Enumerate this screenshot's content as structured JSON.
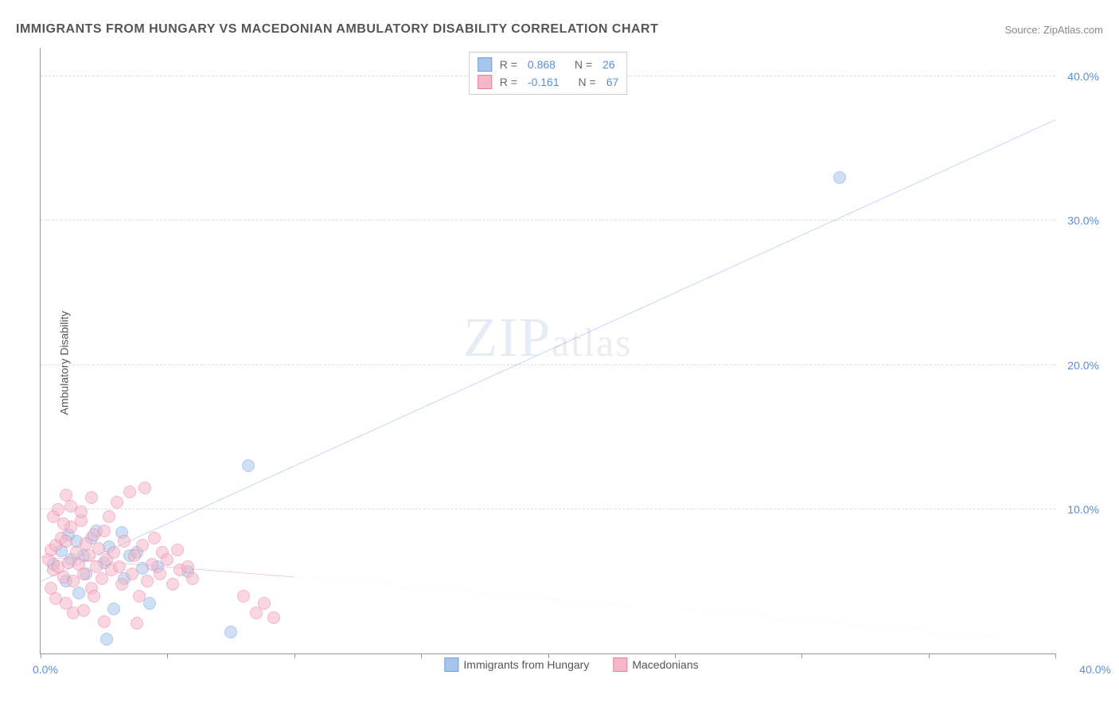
{
  "title": "IMMIGRANTS FROM HUNGARY VS MACEDONIAN AMBULATORY DISABILITY CORRELATION CHART",
  "source_label": "Source: ",
  "source_name": "ZipAtlas.com",
  "watermark_main": "ZIP",
  "watermark_sub": "atlas",
  "ylabel": "Ambulatory Disability",
  "chart": {
    "type": "scatter",
    "xlim": [
      0,
      40
    ],
    "ylim": [
      0,
      42
    ],
    "x_ticks": [
      0,
      5,
      10,
      15,
      20,
      25,
      30,
      35,
      40
    ],
    "y_gridlines": [
      10,
      20,
      30,
      40
    ],
    "y_tick_labels": [
      "10.0%",
      "20.0%",
      "30.0%",
      "40.0%"
    ],
    "x_label_start": "0.0%",
    "x_label_end": "40.0%",
    "background_color": "#ffffff",
    "grid_color": "#dddddd",
    "marker_radius": 7,
    "marker_opacity": 0.55
  },
  "series": [
    {
      "id": "hungary",
      "label": "Immigrants from Hungary",
      "color_fill": "#a8c6ec",
      "color_stroke": "#6fa0dc",
      "r": "0.868",
      "n": "26",
      "trend": {
        "x1": 0,
        "y1": 5.0,
        "x2": 40,
        "y2": 37.0,
        "color": "#2e6fd9",
        "width": 2,
        "dash": "none"
      },
      "points": [
        {
          "x": 0.5,
          "y": 6.2
        },
        {
          "x": 0.8,
          "y": 7.1
        },
        {
          "x": 1.0,
          "y": 5.0
        },
        {
          "x": 1.2,
          "y": 6.5
        },
        {
          "x": 1.4,
          "y": 7.8
        },
        {
          "x": 1.5,
          "y": 4.2
        },
        {
          "x": 1.7,
          "y": 6.8
        },
        {
          "x": 1.8,
          "y": 5.5
        },
        {
          "x": 2.0,
          "y": 8.0
        },
        {
          "x": 2.2,
          "y": 8.5
        },
        {
          "x": 2.5,
          "y": 6.3
        },
        {
          "x": 2.7,
          "y": 7.4
        },
        {
          "x": 2.9,
          "y": 3.1
        },
        {
          "x": 3.2,
          "y": 8.4
        },
        {
          "x": 3.3,
          "y": 5.2
        },
        {
          "x": 3.5,
          "y": 6.8
        },
        {
          "x": 3.8,
          "y": 7.0
        },
        {
          "x": 4.0,
          "y": 5.9
        },
        {
          "x": 4.3,
          "y": 3.5
        },
        {
          "x": 4.6,
          "y": 6.0
        },
        {
          "x": 5.8,
          "y": 5.7
        },
        {
          "x": 2.6,
          "y": 1.0
        },
        {
          "x": 7.5,
          "y": 1.5
        },
        {
          "x": 8.2,
          "y": 13.0
        },
        {
          "x": 31.5,
          "y": 33.0
        },
        {
          "x": 1.1,
          "y": 8.2
        }
      ]
    },
    {
      "id": "macedonians",
      "label": "Macedonians",
      "color_fill": "#f5b8c8",
      "color_stroke": "#ec7ba0",
      "r": "-0.161",
      "n": "67",
      "trend_solid": {
        "x1": 0,
        "y1": 6.7,
        "x2": 10,
        "y2": 5.3,
        "color": "#e5527d",
        "width": 2
      },
      "trend_dash": {
        "x1": 10,
        "y1": 5.3,
        "x2": 40,
        "y2": 0.8,
        "color": "#f5b8c8",
        "width": 1
      },
      "points": [
        {
          "x": 0.3,
          "y": 6.5
        },
        {
          "x": 0.4,
          "y": 7.2
        },
        {
          "x": 0.5,
          "y": 5.8
        },
        {
          "x": 0.6,
          "y": 7.5
        },
        {
          "x": 0.7,
          "y": 6.0
        },
        {
          "x": 0.8,
          "y": 8.0
        },
        {
          "x": 0.9,
          "y": 5.3
        },
        {
          "x": 1.0,
          "y": 7.8
        },
        {
          "x": 1.1,
          "y": 6.3
        },
        {
          "x": 1.2,
          "y": 8.8
        },
        {
          "x": 1.3,
          "y": 5.0
        },
        {
          "x": 1.4,
          "y": 7.0
        },
        {
          "x": 1.5,
          "y": 6.2
        },
        {
          "x": 1.6,
          "y": 9.2
        },
        {
          "x": 1.7,
          "y": 5.5
        },
        {
          "x": 1.8,
          "y": 7.6
        },
        {
          "x": 1.9,
          "y": 6.8
        },
        {
          "x": 2.0,
          "y": 4.5
        },
        {
          "x": 2.1,
          "y": 8.2
        },
        {
          "x": 2.2,
          "y": 6.0
        },
        {
          "x": 2.3,
          "y": 7.3
        },
        {
          "x": 2.4,
          "y": 5.2
        },
        {
          "x": 2.5,
          "y": 8.5
        },
        {
          "x": 2.6,
          "y": 6.5
        },
        {
          "x": 2.7,
          "y": 9.5
        },
        {
          "x": 2.8,
          "y": 5.8
        },
        {
          "x": 2.9,
          "y": 7.0
        },
        {
          "x": 3.0,
          "y": 10.5
        },
        {
          "x": 3.1,
          "y": 6.0
        },
        {
          "x": 3.2,
          "y": 4.8
        },
        {
          "x": 3.3,
          "y": 7.8
        },
        {
          "x": 3.5,
          "y": 11.2
        },
        {
          "x": 3.6,
          "y": 5.5
        },
        {
          "x": 3.7,
          "y": 6.8
        },
        {
          "x": 3.9,
          "y": 4.0
        },
        {
          "x": 4.0,
          "y": 7.5
        },
        {
          "x": 4.1,
          "y": 11.5
        },
        {
          "x": 4.2,
          "y": 5.0
        },
        {
          "x": 4.4,
          "y": 6.2
        },
        {
          "x": 4.5,
          "y": 8.0
        },
        {
          "x": 4.7,
          "y": 5.5
        },
        {
          "x": 4.8,
          "y": 7.0
        },
        {
          "x": 5.0,
          "y": 6.5
        },
        {
          "x": 5.2,
          "y": 4.8
        },
        {
          "x": 5.4,
          "y": 7.2
        },
        {
          "x": 5.5,
          "y": 5.8
        },
        {
          "x": 5.8,
          "y": 6.0
        },
        {
          "x": 6.0,
          "y": 5.2
        },
        {
          "x": 0.4,
          "y": 4.5
        },
        {
          "x": 0.6,
          "y": 3.8
        },
        {
          "x": 1.0,
          "y": 3.5
        },
        {
          "x": 1.3,
          "y": 2.8
        },
        {
          "x": 1.7,
          "y": 3.0
        },
        {
          "x": 2.1,
          "y": 4.0
        },
        {
          "x": 2.5,
          "y": 2.2
        },
        {
          "x": 3.8,
          "y": 2.1
        },
        {
          "x": 8.0,
          "y": 4.0
        },
        {
          "x": 8.5,
          "y": 2.8
        },
        {
          "x": 8.8,
          "y": 3.5
        },
        {
          "x": 9.2,
          "y": 2.5
        },
        {
          "x": 0.5,
          "y": 9.5
        },
        {
          "x": 0.7,
          "y": 10.0
        },
        {
          "x": 0.9,
          "y": 9.0
        },
        {
          "x": 1.2,
          "y": 10.2
        },
        {
          "x": 1.6,
          "y": 9.8
        },
        {
          "x": 2.0,
          "y": 10.8
        },
        {
          "x": 1.0,
          "y": 11.0
        }
      ]
    }
  ],
  "legend_top": {
    "r_label": "R =",
    "n_label": "N ="
  }
}
